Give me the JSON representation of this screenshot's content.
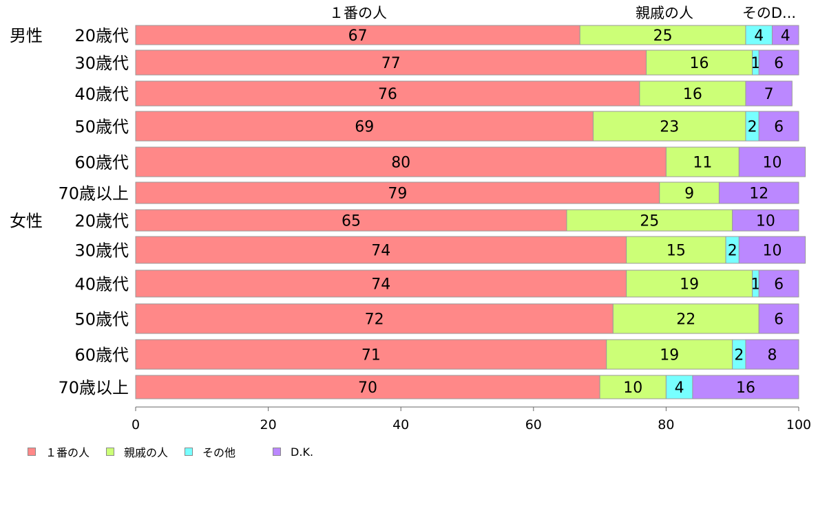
{
  "chart_data": {
    "type": "bar",
    "orientation": "horizontal",
    "stacked": true,
    "categories": [
      {
        "group": "男性",
        "label": "20歳代"
      },
      {
        "group": "",
        "label": "30歳代"
      },
      {
        "group": "",
        "label": "40歳代"
      },
      {
        "group": "",
        "label": "50歳代"
      },
      {
        "group": "",
        "label": "60歳代"
      },
      {
        "group": "",
        "label": "70歳以上"
      },
      {
        "group": "女性",
        "label": "20歳代"
      },
      {
        "group": "",
        "label": "30歳代"
      },
      {
        "group": "",
        "label": "40歳代"
      },
      {
        "group": "",
        "label": "50歳代"
      },
      {
        "group": "",
        "label": "60歳代"
      },
      {
        "group": "",
        "label": "70歳以上"
      }
    ],
    "series": [
      {
        "name": "１番の人",
        "color": "#ff8888",
        "values": [
          67,
          77,
          76,
          69,
          80,
          79,
          65,
          74,
          74,
          72,
          71,
          70
        ]
      },
      {
        "name": "親戚の人",
        "color": "#ccff77",
        "values": [
          25,
          16,
          16,
          23,
          11,
          9,
          25,
          15,
          19,
          22,
          19,
          10
        ]
      },
      {
        "name": "その他",
        "color": "#77ffff",
        "values": [
          4,
          1,
          0,
          2,
          0,
          0,
          0,
          2,
          1,
          0,
          2,
          4
        ]
      },
      {
        "name": "D.K.",
        "color": "#bb88ff",
        "values": [
          4,
          6,
          7,
          6,
          10,
          12,
          10,
          10,
          6,
          6,
          8,
          16
        ]
      }
    ],
    "top_labels": [
      "１番の人",
      "親戚の人",
      "そのD..."
    ],
    "xlim": [
      0,
      100
    ],
    "xticks": [
      0,
      20,
      40,
      60,
      80,
      100
    ],
    "legend_position": "bottom-left"
  }
}
